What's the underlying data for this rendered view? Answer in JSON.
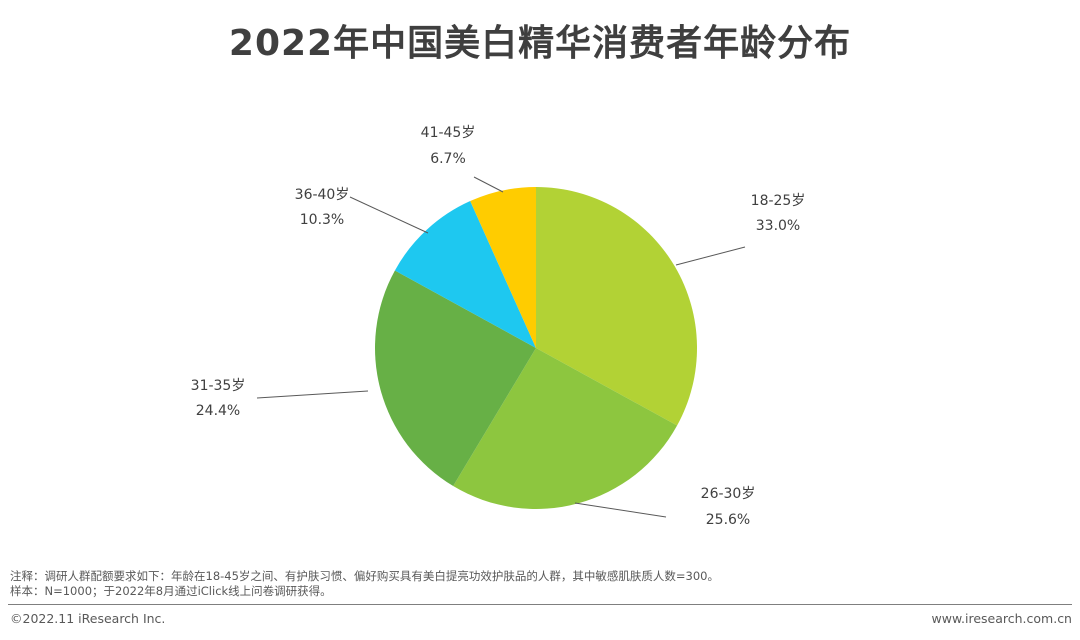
{
  "title": "2022年中国美白精华消费者年龄分布",
  "chart_data": {
    "type": "pie",
    "title": "2022年中国美白精华消费者年龄分布",
    "slices": [
      {
        "label": "18-25岁",
        "value": 33.0,
        "value_text": "33.0%",
        "color": "#B2D235"
      },
      {
        "label": "26-30岁",
        "value": 25.6,
        "value_text": "25.6%",
        "color": "#8DC63F"
      },
      {
        "label": "31-35岁",
        "value": 24.4,
        "value_text": "24.4%",
        "color": "#67B046"
      },
      {
        "label": "36-40岁",
        "value": 10.3,
        "value_text": "10.3%",
        "color": "#1EC8F0"
      },
      {
        "label": "41-45岁",
        "value": 6.7,
        "value_text": "6.7%",
        "color": "#FFCC00"
      }
    ],
    "start_angle": "12 o'clock",
    "direction": "clockwise",
    "legend": "none",
    "label_placement": "outside with leader lines"
  },
  "notes": {
    "line1": "注释：调研人群配额要求如下：年龄在18-45岁之间、有护肤习惯、偏好购买具有美白提亮功效护肤品的人群，其中敏感肌肤质人数=300。",
    "line2": "样本：N=1000；于2022年8月通过iClick线上问卷调研获得。"
  },
  "footer": {
    "copyright": "©2022.11 iResearch Inc.",
    "website": "www.iresearch.com.cn"
  }
}
